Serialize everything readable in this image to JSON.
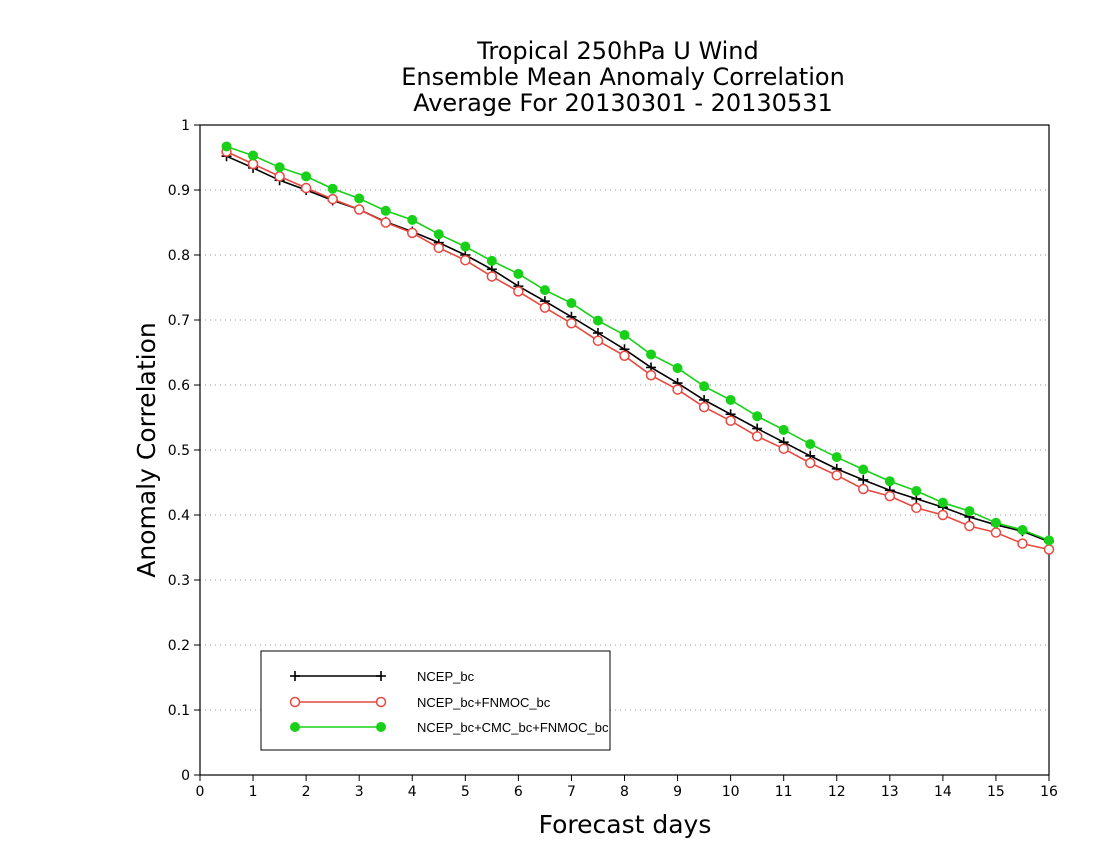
{
  "chart_data": {
    "type": "line",
    "title": [
      "Tropical 250hPa U Wind",
      "Ensemble Mean Anomaly Correlation",
      "Average For 20130301 - 20130531"
    ],
    "xlabel": "Forecast days",
    "ylabel": "Anomaly Correlation",
    "xlim": [
      0,
      16
    ],
    "ylim": [
      0,
      1
    ],
    "xticks": [
      "0",
      "1",
      "2",
      "3",
      "4",
      "5",
      "6",
      "7",
      "8",
      "9",
      "10",
      "11",
      "12",
      "13",
      "14",
      "15",
      "16"
    ],
    "yticks": [
      "0",
      "0.1",
      "0.2",
      "0.3",
      "0.4",
      "0.5",
      "0.6",
      "0.7",
      "0.8",
      "0.9",
      "1"
    ],
    "grid": "horizontal dotted",
    "legend_position": "bottom-left",
    "x": [
      0.5,
      1,
      1.5,
      2,
      2.5,
      3,
      3.5,
      4,
      4.5,
      5,
      5.5,
      6,
      6.5,
      7,
      7.5,
      8,
      8.5,
      9,
      9.5,
      10,
      10.5,
      11,
      11.5,
      12,
      12.5,
      13,
      13.5,
      14,
      14.5,
      15,
      15.5,
      16
    ],
    "series": [
      {
        "name": "NCEP_bc",
        "color": "#000000",
        "marker": "plus",
        "values": [
          0.952,
          0.934,
          0.915,
          0.9,
          0.884,
          0.87,
          0.851,
          0.836,
          0.819,
          0.8,
          0.778,
          0.752,
          0.729,
          0.705,
          0.68,
          0.655,
          0.627,
          0.603,
          0.577,
          0.555,
          0.533,
          0.512,
          0.491,
          0.471,
          0.454,
          0.438,
          0.425,
          0.412,
          0.397,
          0.385,
          0.375,
          0.359
        ]
      },
      {
        "name": "NCEP_bc+FNMOC_bc",
        "color": "#e8483f",
        "marker": "open-circle",
        "values": [
          0.959,
          0.94,
          0.921,
          0.903,
          0.886,
          0.87,
          0.85,
          0.834,
          0.811,
          0.792,
          0.767,
          0.744,
          0.719,
          0.695,
          0.668,
          0.645,
          0.615,
          0.593,
          0.566,
          0.545,
          0.521,
          0.502,
          0.48,
          0.461,
          0.44,
          0.429,
          0.411,
          0.4,
          0.383,
          0.373,
          0.356,
          0.347
        ]
      },
      {
        "name": "NCEP_bc+CMC_bc+FNMOC_bc",
        "color": "#18d018",
        "marker": "filled-circle",
        "values": [
          0.967,
          0.953,
          0.935,
          0.921,
          0.902,
          0.887,
          0.868,
          0.854,
          0.832,
          0.813,
          0.791,
          0.771,
          0.746,
          0.726,
          0.699,
          0.677,
          0.647,
          0.626,
          0.598,
          0.577,
          0.552,
          0.531,
          0.509,
          0.489,
          0.47,
          0.452,
          0.437,
          0.419,
          0.406,
          0.388,
          0.377,
          0.361
        ]
      }
    ]
  }
}
